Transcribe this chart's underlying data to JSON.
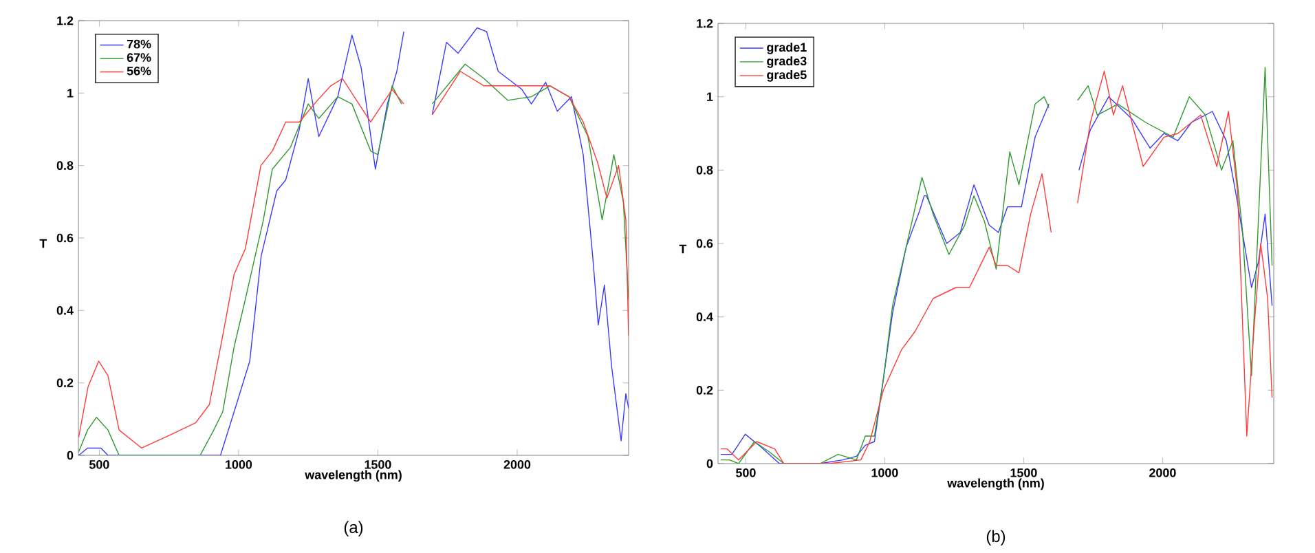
{
  "chart_data": [
    {
      "type": "line",
      "xlabel": "wavelength (nm)",
      "ylabel": "T",
      "annotations": [
        "(a)"
      ],
      "xlim": [
        425,
        2400
      ],
      "ylim": [
        0,
        1.2
      ],
      "xticks": [
        500,
        1000,
        1500,
        2000
      ],
      "yticks": [
        0,
        0.2,
        0.4,
        0.6,
        0.8,
        1,
        1.2
      ],
      "legend": "top left",
      "grid": false,
      "series": [
        {
          "name": "78%",
          "color": "#3a3aff",
          "x": [
            426,
            458,
            506,
            531,
            935,
            992,
            1040,
            1081,
            1137,
            1169,
            1218,
            1250,
            1288,
            1356,
            1407,
            1440,
            1491,
            1534,
            1568,
            1593,
            1640,
            1695,
            1746,
            1788,
            1856,
            1890,
            1932,
            2017,
            2051,
            2102,
            2144,
            2195,
            2237,
            2271,
            2291,
            2313,
            2339,
            2373,
            2390,
            2400
          ],
          "values": [
            0.0,
            0.02,
            0.02,
            0.0,
            0.0,
            0.14,
            0.26,
            0.55,
            0.73,
            0.76,
            0.9,
            1.04,
            0.88,
            0.99,
            1.16,
            1.07,
            0.79,
            0.97,
            1.06,
            1.17,
            null,
            0.94,
            1.14,
            1.11,
            1.18,
            1.17,
            1.06,
            1.01,
            0.97,
            1.03,
            0.95,
            0.99,
            0.83,
            0.55,
            0.36,
            0.47,
            0.245,
            0.04,
            0.17,
            0.13
          ]
        },
        {
          "name": "67%",
          "color": "#2e9a2e",
          "x": [
            426,
            458,
            490,
            531,
            571,
            862,
            911,
            943,
            984,
            1024,
            1089,
            1121,
            1186,
            1250,
            1288,
            1356,
            1407,
            1474,
            1500,
            1551,
            1585,
            1640,
            1695,
            1813,
            1881,
            1966,
            2051,
            2118,
            2186,
            2254,
            2305,
            2347,
            2381,
            2400
          ],
          "values": [
            0.01,
            0.07,
            0.105,
            0.07,
            0.0,
            0.0,
            0.07,
            0.12,
            0.3,
            0.43,
            0.65,
            0.79,
            0.85,
            0.97,
            0.93,
            0.99,
            0.97,
            0.84,
            0.83,
            1.02,
            0.97,
            null,
            0.97,
            1.08,
            1.04,
            0.98,
            0.99,
            1.02,
            0.99,
            0.88,
            0.65,
            0.83,
            0.7,
            0.43
          ]
        },
        {
          "name": "56%",
          "color": "#ff3a3a",
          "x": [
            426,
            460,
            498,
            531,
            571,
            652,
            765,
            846,
            895,
            943,
            984,
            1024,
            1080,
            1121,
            1169,
            1218,
            1283,
            1331,
            1373,
            1415,
            1474,
            1517,
            1551,
            1593,
            1640,
            1695,
            1796,
            1881,
            2017,
            2118,
            2186,
            2237,
            2288,
            2322,
            2364,
            2390,
            2400
          ],
          "values": [
            0.05,
            0.19,
            0.26,
            0.22,
            0.07,
            0.02,
            0.06,
            0.09,
            0.14,
            0.33,
            0.5,
            0.57,
            0.8,
            0.84,
            0.92,
            0.92,
            0.98,
            1.02,
            1.04,
            0.99,
            0.92,
            0.97,
            1.01,
            0.97,
            null,
            0.94,
            1.06,
            1.02,
            1.02,
            1.02,
            0.99,
            0.92,
            0.81,
            0.71,
            0.8,
            0.65,
            0.33
          ]
        }
      ]
    },
    {
      "type": "line",
      "xlabel": "wavelength (nm)",
      "ylabel": "T",
      "annotations": [
        "(b)"
      ],
      "xlim": [
        400,
        2400
      ],
      "ylim": [
        0,
        1.2
      ],
      "xticks": [
        500,
        1000,
        1500,
        2000
      ],
      "yticks": [
        0,
        0.2,
        0.4,
        0.6,
        0.8,
        1,
        1.2
      ],
      "legend": "top left",
      "grid": false,
      "series": [
        {
          "name": "grade1",
          "color": "#3a3aff",
          "x": [
            409,
            450,
            498,
            555,
            621,
            767,
            849,
            898,
            930,
            963,
            995,
            1028,
            1077,
            1126,
            1142,
            1150,
            1223,
            1272,
            1321,
            1376,
            1409,
            1442,
            1492,
            1541,
            1591,
            1645,
            1699,
            1740,
            1806,
            1889,
            1955,
            2005,
            2055,
            2104,
            2179,
            2229,
            2270,
            2320,
            2345,
            2369,
            2394
          ],
          "values": [
            0.025,
            0.025,
            0.08,
            0.045,
            0.0,
            0.0,
            0.01,
            0.02,
            0.05,
            0.06,
            0.23,
            0.41,
            0.59,
            0.69,
            0.73,
            0.73,
            0.6,
            0.63,
            0.76,
            0.65,
            0.63,
            0.7,
            0.7,
            0.89,
            0.98,
            null,
            0.8,
            0.91,
            1.0,
            0.94,
            0.86,
            0.9,
            0.88,
            0.93,
            0.96,
            0.88,
            0.71,
            0.48,
            0.55,
            0.68,
            0.43
          ]
        },
        {
          "name": "grade3",
          "color": "#2e9a2e",
          "x": [
            409,
            441,
            474,
            531,
            588,
            637,
            767,
            832,
            898,
            930,
            963,
            995,
            1028,
            1077,
            1134,
            1174,
            1231,
            1288,
            1321,
            1359,
            1401,
            1450,
            1483,
            1541,
            1574,
            1591,
            1645,
            1694,
            1732,
            1765,
            1839,
            1939,
            2038,
            2096,
            2154,
            2212,
            2253,
            2287,
            2320,
            2369,
            2394
          ],
          "values": [
            0.01,
            0.01,
            0.0,
            0.06,
            0.03,
            0.0,
            0.0,
            0.025,
            0.01,
            0.075,
            0.075,
            0.23,
            0.43,
            0.59,
            0.78,
            0.68,
            0.57,
            0.65,
            0.73,
            0.66,
            0.53,
            0.85,
            0.76,
            0.98,
            1.0,
            0.97,
            null,
            0.99,
            1.03,
            0.95,
            0.98,
            0.93,
            0.89,
            1.0,
            0.95,
            0.8,
            0.88,
            0.64,
            0.24,
            1.08,
            0.54
          ]
        },
        {
          "name": "grade5",
          "color": "#ff3a3a",
          "x": [
            409,
            433,
            474,
            539,
            604,
            637,
            800,
            914,
            946,
            995,
            1060,
            1109,
            1174,
            1256,
            1305,
            1376,
            1401,
            1442,
            1483,
            1525,
            1566,
            1599,
            1645,
            1694,
            1740,
            1790,
            1823,
            1856,
            1930,
            2005,
            2055,
            2137,
            2195,
            2237,
            2270,
            2303,
            2328,
            2353,
            2378,
            2394
          ],
          "values": [
            0.04,
            0.04,
            0.01,
            0.06,
            0.04,
            0.0,
            0.0,
            0.01,
            0.06,
            0.2,
            0.31,
            0.36,
            0.45,
            0.48,
            0.48,
            0.59,
            0.54,
            0.54,
            0.52,
            0.68,
            0.79,
            0.63,
            null,
            0.71,
            0.93,
            1.07,
            0.95,
            1.03,
            0.81,
            0.89,
            0.9,
            0.95,
            0.81,
            0.96,
            0.74,
            0.075,
            0.36,
            0.6,
            0.45,
            0.18
          ]
        }
      ]
    }
  ]
}
